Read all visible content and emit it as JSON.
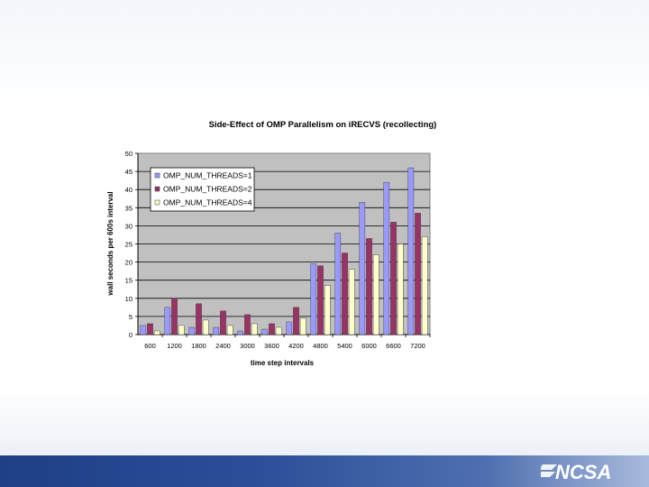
{
  "chart_data": {
    "type": "bar",
    "title": "Side-Effect of OMP Parallelism on iRECVS (recollecting)",
    "xlabel": "time step intervals",
    "ylabel": "wall seconds per 600s interval",
    "ylim": [
      0,
      50
    ],
    "yticks": [
      "0",
      "5",
      "10",
      "15",
      "20",
      "25",
      "30",
      "35",
      "40",
      "45",
      "50"
    ],
    "categories": [
      "600",
      "1200",
      "1800",
      "2400",
      "3000",
      "3600",
      "4200",
      "4800",
      "5400",
      "6000",
      "6600",
      "7200"
    ],
    "series": [
      {
        "name": "OMP_NUM_THREADS=1",
        "color": "#9999ff",
        "values": [
          2.5,
          7.5,
          2,
          2,
          1,
          1.5,
          3.5,
          19.5,
          28,
          36.5,
          42,
          46
        ]
      },
      {
        "name": "OMP_NUM_THREADS=2",
        "color": "#993366",
        "values": [
          3,
          10,
          8.5,
          6.5,
          5.5,
          3,
          7.5,
          19,
          22.5,
          26.5,
          31,
          33.5
        ]
      },
      {
        "name": "OMP_NUM_THREADS=4",
        "color": "#ffffcc",
        "values": [
          1,
          2.5,
          4,
          2.5,
          3,
          2,
          4.5,
          13.5,
          18,
          22,
          25,
          27
        ]
      }
    ],
    "plot_background": "#c0c0c0",
    "grid": true,
    "legend_position": "top-left"
  },
  "brand": {
    "logo_text": "NCSA"
  }
}
